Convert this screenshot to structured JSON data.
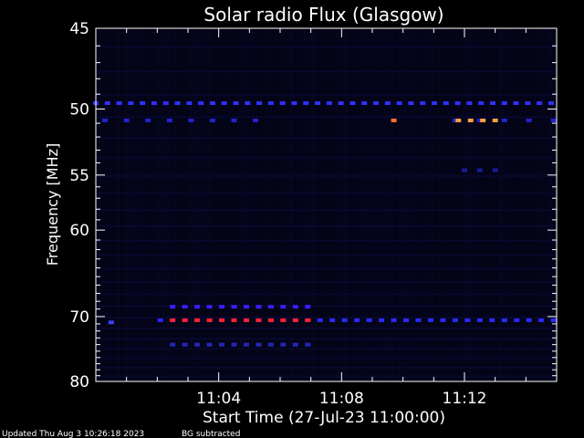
{
  "chart_data": {
    "type": "heatmap",
    "title": "Solar radio Flux (Glasgow)",
    "xlabel": "Start Time (27-Jul-23 11:00:00)",
    "ylabel": "Frequency [MHz]",
    "x_unit": "minutes after 11:00:00",
    "xlim": [
      0,
      15
    ],
    "ylim": [
      45,
      80
    ],
    "y_scale": "reciprocal",
    "x_ticks": [
      {
        "minute": 4,
        "label": "11:04"
      },
      {
        "minute": 8,
        "label": "11:08"
      },
      {
        "minute": 12,
        "label": "11:12"
      }
    ],
    "y_ticks": [
      {
        "value": 45,
        "label": "45"
      },
      {
        "value": 50,
        "label": "50"
      },
      {
        "value": 55,
        "label": "55"
      },
      {
        "value": 60,
        "label": "60"
      },
      {
        "value": 70,
        "label": "70"
      },
      {
        "value": 80,
        "label": "80"
      }
    ],
    "features": [
      {
        "freq": 49.6,
        "x_start": 0.0,
        "x_end": 15.0,
        "step": 0.38,
        "color": "#3030ff"
      },
      {
        "freq": 50.8,
        "x_start": 0.3,
        "x_end": 5.5,
        "step": 0.7,
        "color": "#2222cc"
      },
      {
        "freq": 50.8,
        "x_start": 11.7,
        "x_end": 15.0,
        "step": 0.8,
        "color": "#2222cc"
      },
      {
        "freq": 50.8,
        "x_start": 9.7,
        "x_end": 9.7,
        "step": 1.0,
        "color": "#ff6a30"
      },
      {
        "freq": 50.8,
        "x_start": 11.8,
        "x_end": 13.0,
        "step": 0.4,
        "color": "#ffa040"
      },
      {
        "freq": 54.6,
        "x_start": 12.0,
        "x_end": 13.0,
        "step": 0.5,
        "color": "#1a1a99"
      },
      {
        "freq": 68.7,
        "x_start": 2.5,
        "x_end": 7.2,
        "step": 0.4,
        "color": "#3a20ff"
      },
      {
        "freq": 70.5,
        "x_start": 2.1,
        "x_end": 15.0,
        "step": 0.4,
        "color": "#2a2aff"
      },
      {
        "freq": 70.5,
        "x_start": 2.5,
        "x_end": 7.2,
        "step": 0.4,
        "color": "#ff2030"
      },
      {
        "freq": 74.0,
        "x_start": 2.5,
        "x_end": 7.2,
        "step": 0.4,
        "color": "#2626bb"
      },
      {
        "freq": 70.8,
        "x_start": 0.5,
        "x_end": 0.5,
        "step": 1.0,
        "color": "#4040ff"
      }
    ]
  },
  "footer": {
    "updated": "Updated Thu Aug  3 10:26:18 2023",
    "bg_note": "BG subtracted"
  }
}
